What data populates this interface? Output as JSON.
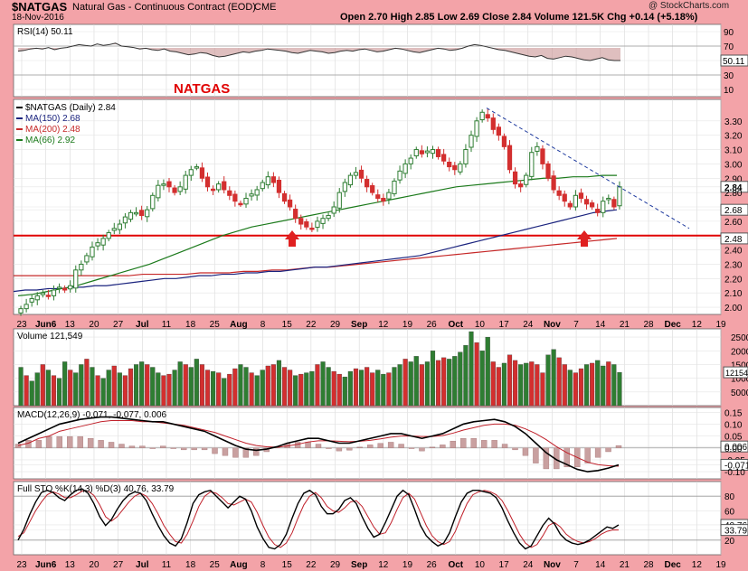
{
  "header": {
    "symbol": "$NATGAS",
    "description": "Natural Gas - Continuous Contract (EOD)",
    "exchange": "CME",
    "date": "18-Nov-2016",
    "quote": "Open 2.70  High 2.85  Low 2.69  Close 2.84  Volume 121.5K  Chg +0.14 (+5.18%)",
    "credit": "@ StockCharts.com"
  },
  "colors": {
    "background": "#f3a3a8",
    "panel": "#ffffff",
    "up": "#2e7d32",
    "down": "#d32f2f",
    "ma150": "#1a237e",
    "ma200": "#c62828",
    "ma66": "#1b7a1b",
    "support_line": "#e00000",
    "trend_line": "#1e3a9e",
    "arrow": "#e02020"
  },
  "chart_data": [
    {
      "type": "line",
      "panel": "rsi",
      "legend": "RSI(14) 50.11",
      "last": "50.11",
      "ylim": [
        0,
        100
      ],
      "ticks": [
        "90",
        "70",
        "50",
        "30",
        "10"
      ],
      "levels": [
        70,
        30
      ],
      "values": [
        63,
        64,
        66,
        67,
        66,
        68,
        65,
        67,
        68,
        70,
        72,
        71,
        70,
        73,
        71,
        72,
        74,
        70,
        69,
        68,
        66,
        67,
        65,
        64,
        66,
        63,
        62,
        60,
        58,
        59,
        61,
        60,
        57,
        55,
        56,
        58,
        60,
        62,
        61,
        63,
        64,
        66,
        65,
        64,
        63,
        61,
        60,
        62,
        64,
        63,
        62,
        60,
        61,
        63,
        64,
        63,
        65,
        66,
        64,
        62,
        63,
        65,
        67,
        66,
        64,
        62,
        61,
        63,
        65,
        67,
        66,
        64,
        65,
        67,
        70,
        72,
        71,
        69,
        67,
        65,
        64,
        62,
        60,
        58,
        56,
        55,
        57,
        53,
        52,
        54,
        56,
        55,
        53,
        51,
        50,
        52,
        54,
        51,
        50,
        50
      ]
    },
    {
      "type": "candlestick",
      "panel": "price",
      "title": "NATGAS",
      "legend": [
        "$NATGAS (Daily) 2.84",
        "MA(150) 2.68",
        "MA(200) 2.48",
        "MA(66) 2.92"
      ],
      "ylim": [
        1.95,
        3.45
      ],
      "ticks": [
        "3.30",
        "3.20",
        "3.10",
        "3.00",
        "2.90",
        "2.84",
        "2.80",
        "2.70",
        "2.68",
        "2.60",
        "2.50",
        "2.48",
        "2.40",
        "2.30",
        "2.20",
        "2.10",
        "2.00"
      ],
      "x_labels": [
        "23",
        "Jun6",
        "13",
        "20",
        "27",
        "Jul",
        "11",
        "18",
        "25",
        "Aug",
        "8",
        "15",
        "22",
        "29",
        "Sep",
        "12",
        "19",
        "26",
        "Oct",
        "10",
        "17",
        "24",
        "Nov",
        "7",
        "14",
        "21",
        "28",
        "Dec",
        "12",
        "19"
      ],
      "close": [
        1.99,
        2.02,
        2.06,
        2.08,
        2.1,
        2.08,
        2.12,
        2.14,
        2.12,
        2.15,
        2.26,
        2.3,
        2.36,
        2.42,
        2.45,
        2.48,
        2.52,
        2.55,
        2.58,
        2.63,
        2.66,
        2.66,
        2.64,
        2.68,
        2.78,
        2.85,
        2.86,
        2.84,
        2.8,
        2.84,
        2.92,
        2.96,
        2.98,
        2.9,
        2.84,
        2.82,
        2.86,
        2.82,
        2.78,
        2.74,
        2.72,
        2.76,
        2.79,
        2.82,
        2.87,
        2.91,
        2.87,
        2.8,
        2.74,
        2.7,
        2.62,
        2.58,
        2.56,
        2.55,
        2.6,
        2.62,
        2.64,
        2.7,
        2.8,
        2.87,
        2.92,
        2.94,
        2.9,
        2.84,
        2.8,
        2.76,
        2.74,
        2.8,
        2.88,
        2.95,
        3.0,
        3.04,
        3.1,
        3.07,
        3.09,
        3.1,
        3.05,
        3.02,
        2.98,
        2.96,
        3.0,
        3.1,
        3.2,
        3.3,
        3.36,
        3.32,
        3.24,
        3.2,
        3.12,
        2.96,
        2.86,
        2.84,
        2.92,
        3.08,
        3.12,
        3.0,
        2.9,
        2.82,
        2.78,
        2.74,
        2.7,
        2.78,
        2.76,
        2.72,
        2.7,
        2.66,
        2.74,
        2.76,
        2.7,
        2.84
      ],
      "ma150": [
        2.11,
        2.12,
        2.12,
        2.13,
        2.13,
        2.14,
        2.14,
        2.15,
        2.15,
        2.16,
        2.17,
        2.18,
        2.19,
        2.2,
        2.2,
        2.21,
        2.22,
        2.22,
        2.23,
        2.23,
        2.24,
        2.24,
        2.25,
        2.25,
        2.26,
        2.27,
        2.28,
        2.28,
        2.29,
        2.3,
        2.31,
        2.32,
        2.33,
        2.34,
        2.35,
        2.36,
        2.38,
        2.4,
        2.42,
        2.44,
        2.46,
        2.48,
        2.5,
        2.52,
        2.54,
        2.56,
        2.58,
        2.6,
        2.62,
        2.64,
        2.66,
        2.67,
        2.68
      ],
      "ma200": [
        2.22,
        2.22,
        2.22,
        2.22,
        2.22,
        2.22,
        2.22,
        2.22,
        2.22,
        2.23,
        2.23,
        2.23,
        2.23,
        2.24,
        2.24,
        2.24,
        2.25,
        2.25,
        2.26,
        2.26,
        2.27,
        2.28,
        2.28,
        2.29,
        2.3,
        2.31,
        2.32,
        2.33,
        2.34,
        2.35,
        2.36,
        2.37,
        2.38,
        2.39,
        2.4,
        2.41,
        2.42,
        2.43,
        2.44,
        2.45,
        2.46,
        2.47,
        2.48
      ],
      "ma66": [
        2.08,
        2.09,
        2.11,
        2.13,
        2.15,
        2.18,
        2.21,
        2.24,
        2.27,
        2.3,
        2.34,
        2.38,
        2.42,
        2.46,
        2.5,
        2.53,
        2.56,
        2.58,
        2.6,
        2.62,
        2.64,
        2.66,
        2.68,
        2.7,
        2.72,
        2.74,
        2.76,
        2.78,
        2.8,
        2.82,
        2.84,
        2.85,
        2.86,
        2.87,
        2.88,
        2.89,
        2.9,
        2.9,
        2.91,
        2.91,
        2.92,
        2.92
      ],
      "annotations": {
        "label": "NATGAS",
        "support_level": 2.5,
        "arrows": [
          "Aug 12",
          "Nov 14"
        ],
        "trendline": "descending from Oct high"
      }
    },
    {
      "type": "bar",
      "panel": "volume",
      "legend": "Volume 121,549",
      "last": "121549",
      "ylim": [
        0,
        280000
      ],
      "ticks": [
        "250000",
        "200000",
        "150000",
        "100000",
        "50000"
      ],
      "values": [
        140000,
        110000,
        90000,
        120000,
        150000,
        130000,
        110000,
        100000,
        160000,
        130000,
        120000,
        150000,
        170000,
        140000,
        110000,
        100000,
        130000,
        145000,
        120000,
        110000,
        135000,
        150000,
        160000,
        150000,
        140000,
        120000,
        110000,
        115000,
        130000,
        160000,
        150000,
        140000,
        170000,
        150000,
        130000,
        125000,
        120000,
        100000,
        115000,
        135000,
        150000,
        140000,
        120000,
        110000,
        130000,
        145000,
        150000,
        165000,
        140000,
        130000,
        110000,
        115000,
        120000,
        125000,
        150000,
        160000,
        140000,
        125000,
        115000,
        105000,
        125000,
        135000,
        130000,
        140000,
        120000,
        130000,
        115000,
        120000,
        140000,
        150000,
        170000,
        160000,
        180000,
        150000,
        160000,
        200000,
        165000,
        175000,
        170000,
        180000,
        195000,
        220000,
        270000,
        230000,
        200000,
        250000,
        160000,
        140000,
        155000,
        185000,
        165000,
        150000,
        155000,
        160000,
        150000,
        120000,
        185000,
        205000,
        175000,
        150000,
        130000,
        120000,
        135000,
        150000,
        155000,
        165000,
        145000,
        160000,
        150000,
        121549
      ],
      "up": [
        1,
        0,
        1,
        1,
        0,
        1,
        0,
        1,
        1,
        0,
        1,
        1,
        0,
        1,
        0,
        1,
        1,
        0,
        1,
        0,
        0,
        1,
        1,
        0,
        1,
        1,
        0,
        0,
        1,
        1,
        0,
        1,
        1,
        0,
        0,
        1,
        0,
        1,
        0,
        0,
        1,
        1,
        0,
        1,
        1,
        0,
        0,
        1,
        0,
        0,
        1,
        0,
        1,
        1,
        0,
        1,
        1,
        0,
        0,
        1,
        1,
        0,
        1,
        0,
        0,
        1,
        1,
        0,
        1,
        1,
        0,
        1,
        1,
        0,
        1,
        1,
        0,
        0,
        1,
        1,
        1,
        1,
        1,
        0,
        1,
        1,
        0,
        0,
        1,
        0,
        0,
        1,
        1,
        0,
        0,
        0,
        1,
        1,
        0,
        0,
        1,
        0,
        0,
        1,
        0,
        1,
        1,
        0,
        1,
        1
      ]
    },
    {
      "type": "line",
      "panel": "macd",
      "legend": "MACD(12,26,9) -0.071, -0.077, 0.006",
      "ylim": [
        -0.13,
        0.17
      ],
      "ticks": [
        "0.15",
        "0.10",
        "0.05",
        "0.006",
        "0.00",
        "-0.05",
        "-0.071",
        "-0.10"
      ],
      "macd": [
        0.02,
        0.04,
        0.06,
        0.08,
        0.1,
        0.11,
        0.12,
        0.125,
        0.13,
        0.13,
        0.125,
        0.12,
        0.115,
        0.11,
        0.11,
        0.1,
        0.09,
        0.08,
        0.07,
        0.05,
        0.03,
        0.01,
        -0.005,
        -0.01,
        -0.005,
        0.005,
        0.02,
        0.03,
        0.04,
        0.04,
        0.03,
        0.02,
        0.02,
        0.03,
        0.04,
        0.05,
        0.06,
        0.06,
        0.05,
        0.04,
        0.05,
        0.06,
        0.08,
        0.1,
        0.11,
        0.115,
        0.12,
        0.11,
        0.09,
        0.06,
        0.02,
        -0.02,
        -0.05,
        -0.07,
        -0.09,
        -0.1,
        -0.095,
        -0.085,
        -0.071
      ],
      "signal": [
        0.01,
        0.02,
        0.04,
        0.05,
        0.07,
        0.08,
        0.09,
        0.1,
        0.11,
        0.115,
        0.115,
        0.115,
        0.11,
        0.11,
        0.105,
        0.1,
        0.095,
        0.085,
        0.075,
        0.065,
        0.05,
        0.035,
        0.02,
        0.01,
        0.005,
        0.003,
        0.008,
        0.015,
        0.025,
        0.03,
        0.03,
        0.028,
        0.026,
        0.028,
        0.032,
        0.038,
        0.045,
        0.05,
        0.05,
        0.048,
        0.048,
        0.052,
        0.062,
        0.075,
        0.085,
        0.095,
        0.1,
        0.1,
        0.095,
        0.08,
        0.06,
        0.035,
        0.005,
        -0.02,
        -0.04,
        -0.06,
        -0.07,
        -0.075,
        -0.077
      ]
    },
    {
      "type": "line",
      "panel": "stochastic",
      "legend": "Full STO %K(14,3) %D(3) 40.76, 33.79",
      "ylim": [
        0,
        100
      ],
      "ticks": [
        "80",
        "60",
        "40.76",
        "33.79",
        "20"
      ],
      "levels": [
        80,
        20
      ],
      "k": [
        20,
        35,
        55,
        72,
        85,
        88,
        85,
        78,
        74,
        82,
        88,
        90,
        84,
        70,
        52,
        40,
        48,
        62,
        74,
        82,
        86,
        84,
        74,
        56,
        40,
        26,
        16,
        12,
        22,
        44,
        70,
        82,
        86,
        88,
        80,
        72,
        64,
        72,
        80,
        76,
        60,
        38,
        22,
        10,
        8,
        14,
        28,
        50,
        70,
        84,
        88,
        82,
        66,
        56,
        56,
        62,
        74,
        78,
        70,
        52,
        36,
        24,
        28,
        44,
        62,
        80,
        88,
        82,
        62,
        40,
        26,
        18,
        12,
        16,
        30,
        52,
        72,
        84,
        88,
        88,
        86,
        84,
        78,
        64,
        46,
        30,
        16,
        8,
        12,
        26,
        40,
        50,
        42,
        28,
        20,
        16,
        14,
        16,
        20,
        26,
        32,
        38,
        36,
        40.76
      ],
      "d": [
        25,
        30,
        45,
        60,
        72,
        82,
        86,
        83,
        78,
        78,
        82,
        87,
        87,
        81,
        68,
        52,
        46,
        52,
        62,
        72,
        80,
        84,
        80,
        70,
        56,
        40,
        28,
        18,
        16,
        28,
        46,
        66,
        80,
        86,
        84,
        78,
        70,
        68,
        72,
        76,
        72,
        58,
        40,
        24,
        14,
        10,
        16,
        30,
        50,
        68,
        80,
        85,
        78,
        66,
        60,
        58,
        64,
        72,
        74,
        66,
        52,
        38,
        28,
        30,
        44,
        62,
        78,
        84,
        76,
        58,
        40,
        26,
        18,
        14,
        18,
        32,
        52,
        70,
        82,
        86,
        88,
        86,
        82,
        74,
        60,
        44,
        28,
        16,
        10,
        14,
        26,
        40,
        44,
        38,
        28,
        22,
        18,
        16,
        18,
        22,
        28,
        32,
        34,
        33.79
      ]
    }
  ],
  "panels": {
    "rsi_label": "RSI(14) 50.11",
    "price_label": "$NATGAS (Daily) 2.84",
    "volume_label": "Volume 121,549",
    "macd_label": "MACD(12,26,9) -0.071, -0.077, 0.006",
    "sto_label": "Full STO %K(14,3) %D(3) 40.76, 33.79"
  }
}
